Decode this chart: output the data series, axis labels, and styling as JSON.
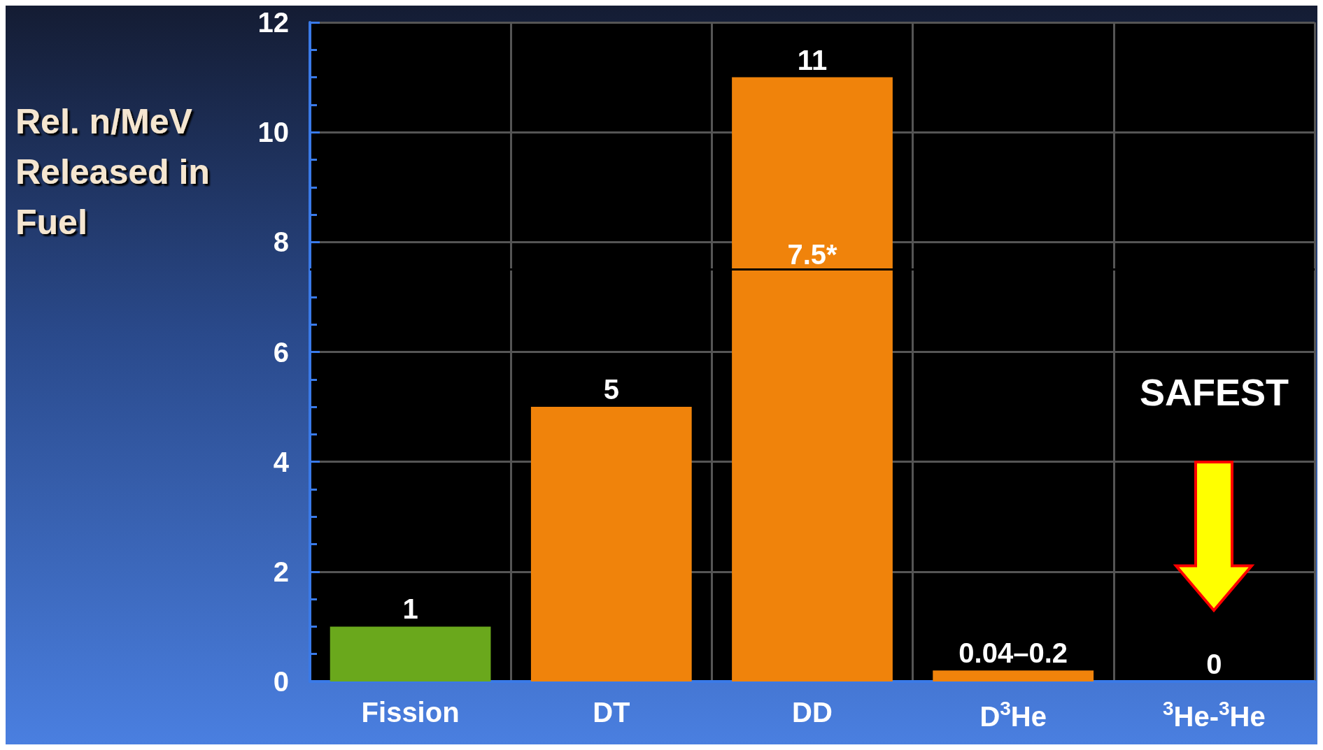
{
  "chart_data": {
    "type": "bar",
    "ylabel": "Rel. n/MeV\nReleased in\nFuel",
    "categories": [
      "Fission",
      "DT",
      "DD",
      "D$^{3}$He",
      "$^{3}$He-$^{3}$He"
    ],
    "values": [
      1,
      5,
      11,
      0.2,
      0
    ],
    "colors": [
      "#6aa81c",
      "#f0830b",
      "#f0830b",
      "#f0830b",
      "#f0830b"
    ],
    "value_labels": [
      "1",
      "5",
      "11",
      "0.04–0.2",
      "0"
    ],
    "ylim": [
      0,
      12
    ],
    "yticks": [
      0,
      2,
      4,
      6,
      8,
      10,
      12
    ],
    "grid": true,
    "ref_lines": [
      {
        "axis": "y",
        "value": 7.5,
        "label": "7.5*",
        "color": "#000000"
      }
    ],
    "annotations": [
      "SAFEST"
    ]
  }
}
